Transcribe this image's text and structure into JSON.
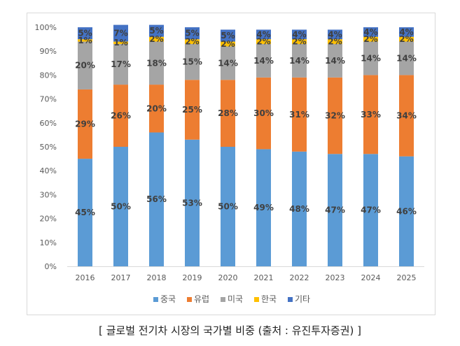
{
  "chart_data": {
    "type": "bar",
    "stacked": true,
    "percent": true,
    "categories": [
      "2016",
      "2017",
      "2018",
      "2019",
      "2020",
      "2021",
      "2022",
      "2023",
      "2024",
      "2025"
    ],
    "series": [
      {
        "name": "중국",
        "color": "#5b9bd5",
        "values": [
          45,
          50,
          56,
          53,
          50,
          49,
          48,
          47,
          47,
          46
        ]
      },
      {
        "name": "유럽",
        "color": "#ed7d31",
        "values": [
          29,
          26,
          20,
          25,
          28,
          30,
          31,
          32,
          33,
          34
        ]
      },
      {
        "name": "미국",
        "color": "#a5a5a5",
        "values": [
          20,
          17,
          18,
          15,
          14,
          14,
          14,
          14,
          14,
          14
        ]
      },
      {
        "name": "한국",
        "color": "#ffc000",
        "values": [
          1,
          1,
          2,
          2,
          2,
          2,
          2,
          2,
          2,
          2
        ]
      },
      {
        "name": "기타",
        "color": "#4472c4",
        "values": [
          5,
          7,
          5,
          5,
          5,
          4,
          4,
          4,
          4,
          4
        ]
      }
    ],
    "yticks": [
      "0%",
      "10%",
      "20%",
      "30%",
      "40%",
      "50%",
      "60%",
      "70%",
      "80%",
      "90%",
      "100%"
    ],
    "ylim": [
      0,
      100
    ],
    "grid": false,
    "legend_position": "bottom"
  },
  "caption": "[ 글로벌 전기차 시장의 국가별 비중 (출처 : 유진투자증권) ]"
}
